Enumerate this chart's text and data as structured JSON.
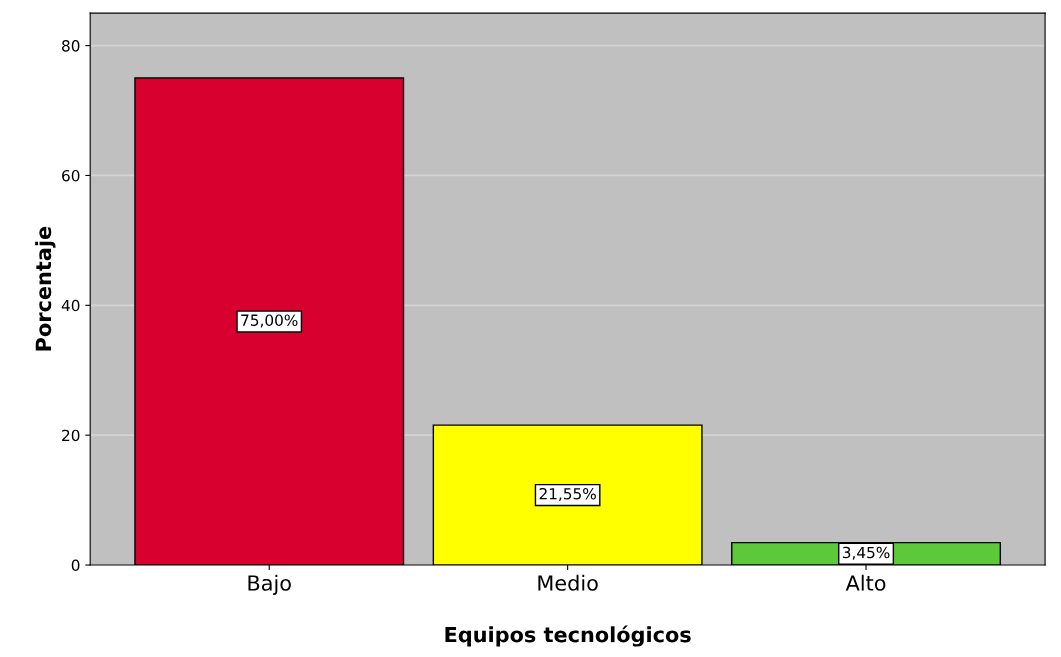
{
  "chart_data": {
    "type": "bar",
    "xlabel": "Equipos tecnológicos",
    "ylabel": "Porcentaje",
    "categories": [
      "Bajo",
      "Medio",
      "Alto"
    ],
    "values": [
      75.0,
      21.55,
      3.45
    ],
    "colors": [
      "#d8002e",
      "#ffff00",
      "#5cc83a"
    ],
    "value_labels": [
      "75,00%",
      "21,55%",
      "3,45%"
    ],
    "ylim": [
      0,
      85
    ],
    "yticks": [
      0,
      20,
      40,
      60,
      80
    ],
    "grid": "y"
  }
}
